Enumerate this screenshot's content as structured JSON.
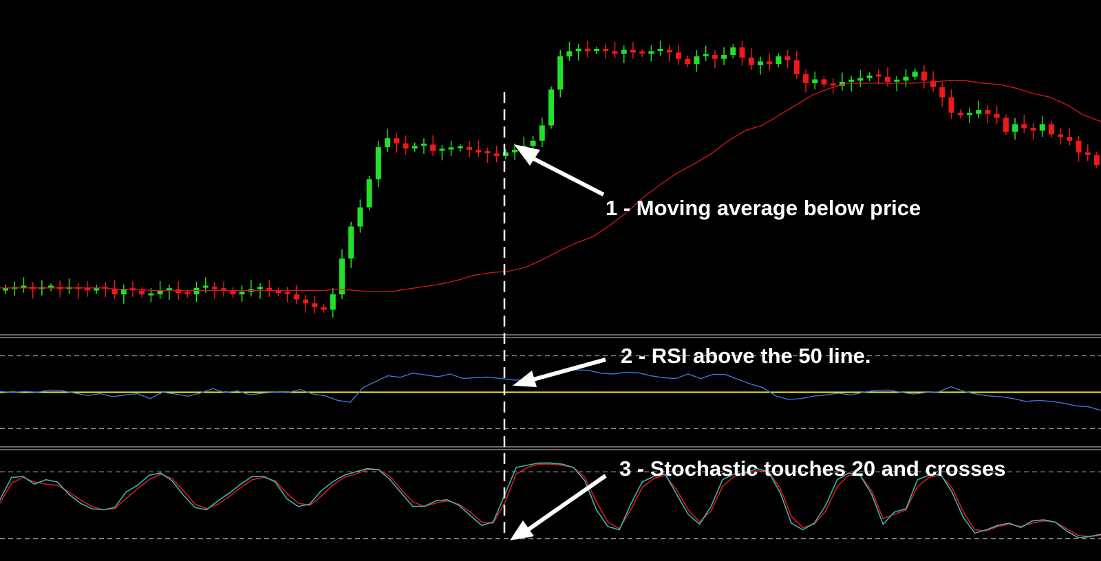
{
  "colors": {
    "background": "#000000",
    "bull_candle": "#22e02a",
    "bear_candle": "#f01818",
    "moving_average": "#d81818",
    "rsi_line": "#3a78d8",
    "rsi_50_line": "#f0f020",
    "stoch_main": "#3ab8b0",
    "stoch_signal": "#e01818",
    "level_lines": "#9a9a9a",
    "separator": "#d0d0d0",
    "annotation": "#ffffff"
  },
  "annotations": {
    "note1": "1 - Moving average below price",
    "note2": "2 - RSI above the 50 line.",
    "note3": "3 - Stochastic touches 20 and crosses"
  },
  "chart_data": [
    {
      "type": "candlestick",
      "series": [
        {
          "values": [
            53.5,
            53.5,
            53.6,
            53.4,
            53.5,
            53.6,
            53.4,
            53.5,
            53.4,
            53.3,
            53.5,
            53.4,
            53.0,
            53.4,
            53.3,
            53.0,
            53.0,
            53.3,
            53.4,
            53.1,
            53.0,
            53.5,
            53.6,
            53.4,
            53.3,
            53.0,
            53.2,
            53.4,
            53.5,
            53.3,
            53.1,
            53.0,
            52.6,
            52.3,
            52.0,
            51.8,
            53.0,
            55.8,
            58.3,
            59.8,
            62.0,
            64.5,
            65.2,
            64.8,
            64.4,
            64.6,
            64.7,
            64.2,
            64.3,
            64.4,
            64.5,
            64.3,
            64.1,
            64.0,
            63.8,
            64.1,
            64.3,
            64.6,
            65.0,
            66.2,
            69.0,
            71.6,
            72.0,
            72.2,
            72.0,
            72.1,
            72.0,
            71.8,
            72.1,
            71.9,
            71.8,
            72.0,
            72.1,
            71.9,
            71.4,
            71.0,
            71.6,
            71.7,
            71.4,
            71.7,
            72.3,
            71.5,
            70.9,
            71.2,
            71.0,
            71.6,
            71.3,
            70.2,
            69.5,
            69.8,
            69.4,
            69.3,
            69.6,
            69.7,
            69.9,
            70.1,
            70.0,
            69.6,
            69.7,
            70.0,
            70.4,
            69.7,
            69.2,
            68.4,
            67.2,
            67.0,
            67.1,
            67.4,
            67.1,
            66.8,
            65.7,
            66.3,
            66.0,
            65.8,
            66.3,
            65.5,
            65.3,
            65.0,
            64.1,
            63.9,
            63.1
          ]
        }
      ],
      "moving_average": {
        "name": "",
        "values": [
          53.5,
          53.5,
          53.5,
          53.5,
          53.5,
          53.5,
          53.5,
          53.4,
          53.4,
          53.3,
          53.3,
          53.3,
          53.3,
          53.3,
          53.3,
          53.3,
          53.3,
          53.3,
          53.3,
          53.3,
          53.4,
          53.3,
          53.2,
          53.2,
          53.4,
          53.6,
          53.8,
          54.1,
          54.5,
          54.7,
          54.8,
          55.1,
          55.7,
          56.4,
          57.0,
          57.5,
          58.4,
          59.4,
          60.6,
          61.6,
          62.5,
          63.2,
          64.0,
          65.0,
          65.8,
          66.2,
          67.0,
          67.8,
          68.6,
          69.1,
          69.5,
          69.5,
          69.5,
          69.5,
          69.5,
          69.6,
          69.7,
          69.7,
          69.5,
          69.4,
          69.1,
          68.7,
          68.4,
          67.8,
          67.0,
          66.5
        ]
      },
      "ylim": [
        50,
        76
      ]
    },
    {
      "type": "line",
      "series": [
        {
          "values": [
            50.5,
            49.8,
            50.5,
            50.0,
            51.2,
            50.8,
            49.5,
            48.2,
            49.2,
            47.5,
            48.5,
            49.2,
            46.5,
            50.0,
            49.0,
            47.8,
            49.5,
            52.0,
            49.8,
            50.7,
            48.5,
            49.5,
            50.0,
            49.8,
            51.5,
            49.0,
            48.0,
            45.5,
            44.5,
            52.5,
            55.8,
            59.0,
            58.2,
            60.5,
            59.5,
            58.5,
            60.0,
            57.5,
            58.0,
            58.3,
            57.5,
            56.8,
            56.5,
            57.5,
            60.5,
            62.0,
            62.3,
            62.0,
            60.5,
            60.0,
            61.0,
            60.7,
            59.0,
            58.0,
            57.5,
            60.0,
            57.5,
            59.8,
            59.7,
            57.0,
            54.5,
            52.5,
            48.0,
            46.0,
            46.5,
            47.8,
            48.5,
            49.5,
            48.5,
            50.0,
            51.0,
            51.2,
            50.0,
            49.0,
            49.8,
            50.2,
            53.0,
            50.5,
            49.0,
            48.0,
            47.5,
            46.5,
            45.0,
            45.5,
            45.0,
            44.0,
            42.5,
            42.0,
            40.0
          ]
        },
        {
          "name": "",
          "values": [
            50,
            50
          ]
        }
      ],
      "levels": [
        70,
        50,
        30
      ],
      "ylim": [
        20,
        80
      ]
    },
    {
      "type": "line",
      "series": [
        {
          "values": [
            55,
            75,
            76,
            69,
            73,
            71,
            60,
            52,
            47,
            46,
            48,
            62,
            68,
            77,
            79,
            72,
            59,
            48,
            46,
            54,
            61,
            69,
            76,
            76,
            71,
            56,
            49,
            51,
            63,
            71,
            77,
            80,
            83,
            82,
            73,
            61,
            49,
            49,
            54,
            55,
            50,
            41,
            32,
            35,
            59,
            84,
            86,
            88,
            88,
            87,
            84,
            72,
            46,
            31,
            28,
            51,
            71,
            76,
            78,
            60,
            42,
            33,
            49,
            73,
            78,
            79,
            83,
            80,
            62,
            34,
            28,
            34,
            50,
            73,
            79,
            77,
            60,
            33,
            44,
            47,
            73,
            77,
            78,
            62,
            39,
            25,
            28,
            32,
            34,
            30,
            36,
            37,
            35,
            27,
            21,
            22,
            24
          ]
        },
        {
          "values": [
            52,
            70,
            75,
            71,
            69,
            68,
            62,
            55,
            49,
            46,
            47,
            56,
            65,
            73,
            78,
            74,
            63,
            51,
            47,
            51,
            58,
            66,
            73,
            75,
            72,
            61,
            52,
            50,
            58,
            68,
            75,
            78,
            82,
            82,
            76,
            64,
            53,
            49,
            52,
            54,
            51,
            44,
            35,
            34,
            52,
            78,
            84,
            87,
            87,
            86,
            84,
            75,
            53,
            35,
            29,
            46,
            66,
            74,
            77,
            64,
            46,
            35,
            45,
            67,
            76,
            78,
            81,
            80,
            66,
            40,
            30,
            33,
            45,
            67,
            77,
            77,
            63,
            38,
            42,
            46,
            67,
            75,
            77,
            66,
            44,
            28,
            27,
            31,
            33,
            31,
            34,
            36,
            35,
            29,
            23,
            22,
            23
          ]
        }
      ],
      "levels": [
        80,
        20
      ],
      "ylim": [
        0,
        100
      ]
    }
  ]
}
